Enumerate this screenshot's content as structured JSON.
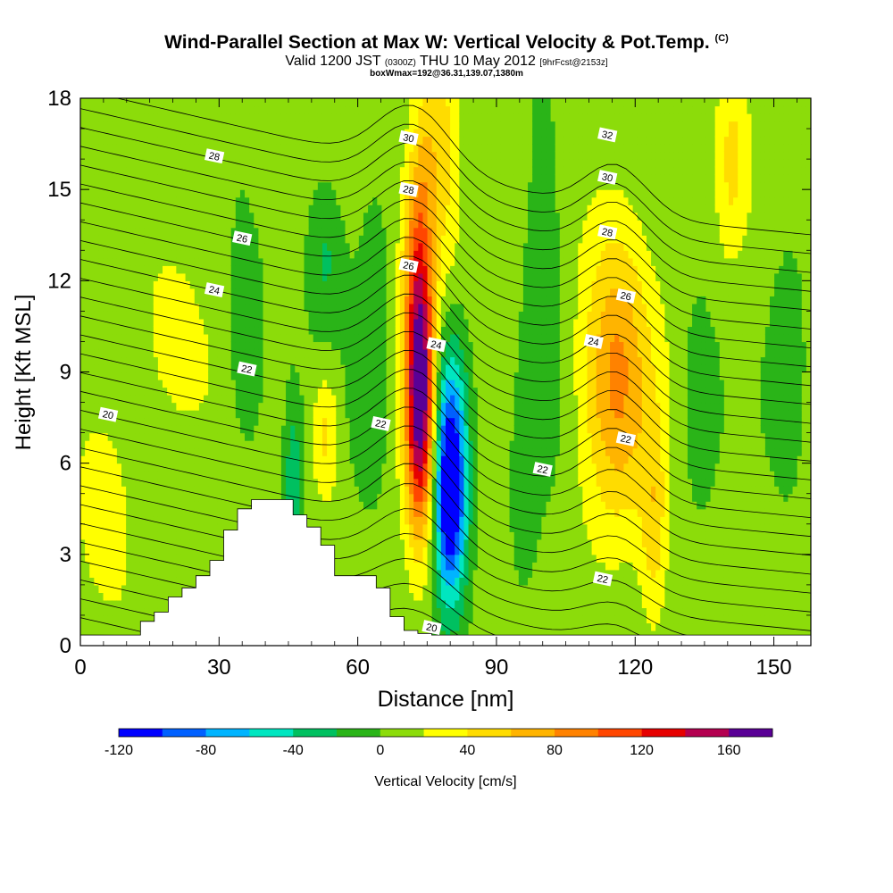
{
  "header": {
    "title": "Wind-Parallel Section at Max W: Vertical Velocity & Pot.Temp.",
    "copyright": "(C)",
    "valid_prefix": "Valid 1200 JST",
    "valid_utc": "(0300Z)",
    "valid_date": "THU 10 May 2012",
    "forecast": "[9hrFcst@2153z]",
    "box_info": "boxWmax=192@36.31,139.07,1380m"
  },
  "chart_data": {
    "type": "heatmap",
    "xlabel": "Distance [nm]",
    "ylabel": "Height [Kft MSL]",
    "xlim": [
      0,
      158
    ],
    "ylim": [
      0,
      18
    ],
    "x_ticks": [
      0,
      30,
      60,
      90,
      120,
      150
    ],
    "y_ticks": [
      0,
      3,
      6,
      9,
      12,
      15,
      18
    ],
    "colorbar": {
      "label": "Vertical Velocity [cm/s]",
      "ticks": [
        -120,
        -80,
        -40,
        0,
        40,
        80,
        120,
        160
      ],
      "range": [
        -120,
        180
      ],
      "step": 20,
      "colors": [
        "#0000ff",
        "#0060ff",
        "#00b4ff",
        "#00e6c0",
        "#00c060",
        "#2ab418",
        "#8cdc0a",
        "#ffff00",
        "#ffdc00",
        "#ffb400",
        "#ff8200",
        "#ff4600",
        "#e60000",
        "#b40050",
        "#5a0096"
      ]
    },
    "contour_labels": [
      {
        "label": "20",
        "x": 6,
        "y": 7.6
      },
      {
        "label": "22",
        "x": 36,
        "y": 9.1
      },
      {
        "label": "24",
        "x": 29,
        "y": 11.7
      },
      {
        "label": "26",
        "x": 35,
        "y": 13.4
      },
      {
        "label": "28",
        "x": 29,
        "y": 16.1
      },
      {
        "label": "30",
        "x": 71,
        "y": 16.7
      },
      {
        "label": "28",
        "x": 71,
        "y": 15.0
      },
      {
        "label": "26",
        "x": 71,
        "y": 12.5
      },
      {
        "label": "24",
        "x": 77,
        "y": 9.9
      },
      {
        "label": "22",
        "x": 65,
        "y": 7.3
      },
      {
        "label": "20",
        "x": 76,
        "y": 0.6
      },
      {
        "label": "32",
        "x": 114,
        "y": 16.8
      },
      {
        "label": "30",
        "x": 114,
        "y": 15.4
      },
      {
        "label": "28",
        "x": 114,
        "y": 13.6
      },
      {
        "label": "26",
        "x": 118,
        "y": 11.5
      },
      {
        "label": "24",
        "x": 111,
        "y": 10.0
      },
      {
        "label": "22",
        "x": 118,
        "y": 6.8
      },
      {
        "label": "22",
        "x": 100,
        "y": 5.8
      },
      {
        "label": "22",
        "x": 113,
        "y": 2.2
      }
    ],
    "terrain_steps": [
      [
        10,
        0.35
      ],
      [
        13,
        0.8
      ],
      [
        16,
        1.1
      ],
      [
        19,
        1.6
      ],
      [
        22,
        1.9
      ],
      [
        25,
        2.3
      ],
      [
        28,
        2.8
      ],
      [
        31,
        3.8
      ],
      [
        34,
        4.5
      ],
      [
        37,
        4.8
      ],
      [
        43,
        4.8
      ],
      [
        46,
        4.3
      ],
      [
        49,
        3.9
      ],
      [
        52,
        3.3
      ],
      [
        55,
        2.3
      ],
      [
        61,
        2.3
      ],
      [
        64,
        1.9
      ],
      [
        67,
        0.95
      ],
      [
        70,
        0.5
      ],
      [
        73,
        0.4
      ],
      [
        76,
        0.35
      ],
      [
        80,
        0.35
      ],
      [
        90,
        0.35
      ],
      [
        100,
        0.35
      ]
    ]
  }
}
